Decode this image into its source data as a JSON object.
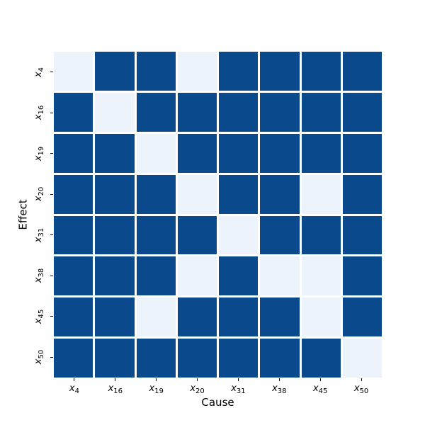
{
  "chart_data": {
    "type": "heatmap",
    "title": "",
    "xlabel": "Cause",
    "ylabel": "Effect",
    "tick_base": "x",
    "tick_subscripts": [
      "4",
      "16",
      "19",
      "20",
      "31",
      "38",
      "45",
      "50"
    ],
    "x_ticklabels": [
      "x4",
      "x16",
      "x19",
      "x20",
      "x31",
      "x38",
      "x45",
      "x50"
    ],
    "y_ticklabels": [
      "x4",
      "x16",
      "x19",
      "x20",
      "x31",
      "x38",
      "x45",
      "x50"
    ],
    "matrix": [
      [
        0,
        1,
        1,
        0,
        1,
        1,
        1,
        1
      ],
      [
        1,
        0,
        1,
        1,
        1,
        1,
        1,
        1
      ],
      [
        1,
        1,
        0,
        1,
        1,
        1,
        1,
        1
      ],
      [
        1,
        1,
        1,
        0,
        1,
        1,
        0,
        1
      ],
      [
        1,
        1,
        1,
        1,
        0,
        1,
        1,
        1
      ],
      [
        1,
        1,
        1,
        0,
        1,
        0,
        0,
        1
      ],
      [
        1,
        1,
        0,
        1,
        1,
        1,
        0,
        1
      ],
      [
        1,
        1,
        1,
        1,
        1,
        1,
        1,
        0
      ]
    ],
    "value_colors": {
      "1": "#0a4a8c",
      "0": "#edf3fb"
    },
    "grid_line_color": "#ffffff",
    "background_color": "#ffffff",
    "y_tick_rotation_deg": 90,
    "legend_position": "none"
  }
}
